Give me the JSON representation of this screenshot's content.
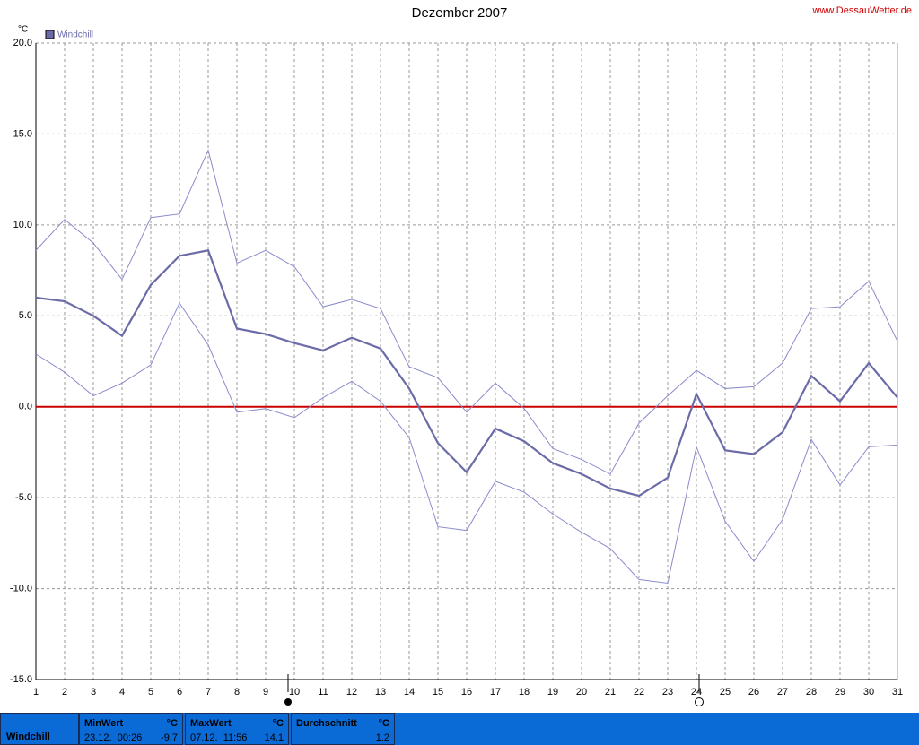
{
  "chart_data": {
    "type": "line",
    "title": "Dezember 2007",
    "source": "www.DessauWetter.de",
    "y_unit": "°C",
    "x": [
      1,
      2,
      3,
      4,
      5,
      6,
      7,
      8,
      9,
      10,
      11,
      12,
      13,
      14,
      15,
      16,
      17,
      18,
      19,
      20,
      21,
      22,
      23,
      24,
      25,
      26,
      27,
      28,
      29,
      30,
      31
    ],
    "xlim": [
      1,
      31
    ],
    "xticks": [
      1,
      2,
      3,
      4,
      5,
      6,
      7,
      8,
      9,
      10,
      11,
      12,
      13,
      14,
      15,
      16,
      17,
      18,
      19,
      20,
      21,
      22,
      23,
      24,
      25,
      26,
      27,
      28,
      29,
      30,
      31
    ],
    "ylim": [
      -15,
      20
    ],
    "yticks": [
      {
        "value": -15,
        "label": "-15.0"
      },
      {
        "value": -10,
        "label": "-10.0"
      },
      {
        "value": -5,
        "label": "-5.0"
      },
      {
        "value": 0,
        "label": "0.0"
      },
      {
        "value": 5,
        "label": "5.0"
      },
      {
        "value": 10,
        "label": "10.0"
      },
      {
        "value": 15,
        "label": "15.0"
      },
      {
        "value": 20,
        "label": "20.0"
      }
    ],
    "grid": true,
    "reference_line": {
      "value": 0,
      "color": "#cc0000"
    },
    "series": [
      {
        "name": "Windchill",
        "color": "#6b6ba8",
        "range_color": "#8a8acc",
        "values": [
          6.0,
          5.8,
          5.0,
          3.9,
          6.7,
          8.3,
          8.6,
          4.3,
          4.0,
          3.5,
          3.1,
          3.8,
          3.2,
          1.0,
          -2.0,
          -3.6,
          -1.2,
          -1.9,
          -3.1,
          -3.7,
          -4.5,
          -4.9,
          -3.9,
          0.7,
          -2.4,
          -2.6,
          -1.4,
          1.7,
          0.3,
          2.4,
          0.5
        ],
        "max": [
          8.6,
          10.3,
          9.0,
          7.0,
          10.4,
          10.6,
          14.1,
          7.9,
          8.6,
          7.7,
          5.5,
          5.9,
          5.4,
          2.2,
          1.6,
          -0.3,
          1.3,
          -0.1,
          -2.3,
          -2.9,
          -3.7,
          -0.9,
          0.6,
          2.0,
          1.0,
          1.1,
          2.4,
          5.4,
          5.5,
          6.9,
          3.6
        ],
        "min": [
          2.9,
          1.9,
          0.6,
          1.3,
          2.3,
          5.7,
          3.4,
          -0.3,
          -0.1,
          -0.6,
          0.5,
          1.4,
          0.3,
          -1.7,
          -6.6,
          -6.8,
          -4.1,
          -4.7,
          -5.9,
          -6.9,
          -7.8,
          -9.5,
          -9.7,
          -2.2,
          -6.3,
          -8.5,
          -6.2,
          -1.8,
          -4.3,
          -2.2,
          -2.1
        ]
      }
    ]
  },
  "summary": {
    "name": "Windchill",
    "columns": [
      {
        "title": "MinWert",
        "unit": "°C",
        "time": "23.12.  00:26",
        "value": "-9.7"
      },
      {
        "title": "MaxWert",
        "unit": "°C",
        "time": "07.12.  11:56",
        "value": "14.1"
      },
      {
        "title": "Durchschnitt",
        "unit": "°C",
        "time": "",
        "value": "1.2"
      }
    ]
  }
}
